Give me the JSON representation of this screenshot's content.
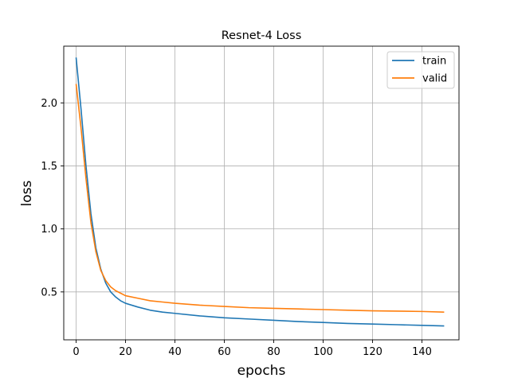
{
  "chart_data": {
    "type": "line",
    "title": "Resnet-4 Loss",
    "xlabel": "epochs",
    "ylabel": "loss",
    "xlim": [
      -5,
      155
    ],
    "ylim": [
      0.12,
      2.45
    ],
    "xticks": [
      0,
      20,
      40,
      60,
      80,
      100,
      120,
      140
    ],
    "yticks": [
      0.5,
      1.0,
      1.5,
      2.0
    ],
    "ytick_labels": [
      "0.5",
      "1.0",
      "1.5",
      "2.0"
    ],
    "grid": true,
    "legend_position": "top-right",
    "series": [
      {
        "name": "train",
        "color": "#1f77b4",
        "x": [
          0,
          2,
          4,
          6,
          8,
          10,
          12,
          14,
          16,
          18,
          20,
          25,
          30,
          35,
          40,
          50,
          60,
          70,
          80,
          90,
          100,
          110,
          120,
          130,
          140,
          149
        ],
        "y": [
          2.36,
          1.95,
          1.5,
          1.12,
          0.85,
          0.68,
          0.57,
          0.5,
          0.46,
          0.43,
          0.41,
          0.38,
          0.355,
          0.34,
          0.33,
          0.31,
          0.295,
          0.285,
          0.275,
          0.265,
          0.258,
          0.25,
          0.245,
          0.24,
          0.235,
          0.23
        ]
      },
      {
        "name": "valid",
        "color": "#ff7f0e",
        "x": [
          0,
          2,
          4,
          6,
          8,
          10,
          12,
          14,
          16,
          18,
          20,
          25,
          30,
          35,
          40,
          50,
          60,
          70,
          80,
          90,
          100,
          110,
          120,
          130,
          140,
          149
        ],
        "y": [
          2.15,
          1.8,
          1.4,
          1.05,
          0.82,
          0.67,
          0.59,
          0.54,
          0.51,
          0.49,
          0.47,
          0.45,
          0.43,
          0.42,
          0.41,
          0.395,
          0.385,
          0.375,
          0.37,
          0.365,
          0.36,
          0.355,
          0.35,
          0.348,
          0.345,
          0.34
        ]
      }
    ]
  }
}
